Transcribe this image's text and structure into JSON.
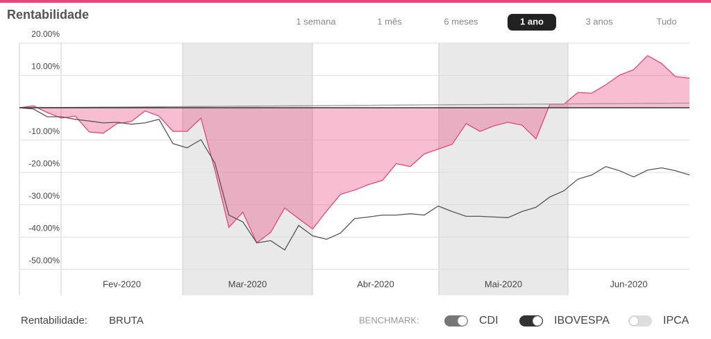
{
  "header": {
    "title": "Rentabilidade",
    "ranges": [
      {
        "label": "1 semana",
        "active": false
      },
      {
        "label": "1 mês",
        "active": false
      },
      {
        "label": "6 meses",
        "active": false
      },
      {
        "label": "1 ano",
        "active": true
      },
      {
        "label": "3 anos",
        "active": false
      },
      {
        "label": "Tudo",
        "active": false
      }
    ]
  },
  "chart_data": {
    "type": "line",
    "x_labels": [
      "Fev-2020",
      "Mar-2020",
      "Abr-2020",
      "Mai-2020",
      "Jun-2020"
    ],
    "ylim": [
      -58,
      20
    ],
    "yticks": [
      {
        "value": 20,
        "label": "20.00%"
      },
      {
        "value": 10,
        "label": "10.00%"
      },
      {
        "value": -10,
        "label": "-10.00%"
      },
      {
        "value": -20,
        "label": "-20.00%"
      },
      {
        "value": -30,
        "label": "-30.00%"
      },
      {
        "value": -40,
        "label": "-40.00%"
      },
      {
        "value": -50,
        "label": "-50.00%"
      }
    ],
    "grid": true,
    "series": [
      {
        "name": "Rentabilidade",
        "color": "#e8457a",
        "area": true,
        "values": [
          0,
          0.6,
          -1.5,
          -3.2,
          -2.6,
          -7.5,
          -7.9,
          -4.9,
          -4.3,
          -1,
          -2.6,
          -7.3,
          -7.3,
          -3.2,
          -19.3,
          -37,
          -32.3,
          -41.8,
          -38.5,
          -31,
          -34.3,
          -37.5,
          -32,
          -26.8,
          -25.5,
          -23.8,
          -22.5,
          -17.3,
          -18.2,
          -14.3,
          -12.8,
          -11.3,
          -4.9,
          -7.3,
          -5.6,
          -4.5,
          -5.4,
          -9.6,
          1.1,
          1.1,
          4.7,
          4.5,
          7.1,
          10.1,
          11.8,
          16.1,
          13.7,
          9.6,
          9.2
        ]
      },
      {
        "name": "IBOVESPA",
        "color": "#555555",
        "area": false,
        "values": [
          0,
          -0.4,
          -2.8,
          -2.8,
          -3.6,
          -4.1,
          -4.7,
          -4.5,
          -5.1,
          -4.7,
          -3.6,
          -11.1,
          -12.4,
          -9.9,
          -17.1,
          -33.2,
          -35.3,
          -41.8,
          -41.1,
          -44,
          -36.4,
          -39.6,
          -40.7,
          -38.8,
          -34.3,
          -33.8,
          -33.2,
          -33.2,
          -32.8,
          -33.2,
          -30.4,
          -32.1,
          -33.6,
          -33.6,
          -33.8,
          -34,
          -32.1,
          -30.8,
          -27.6,
          -25.7,
          -22.1,
          -20.8,
          -18.2,
          -19.5,
          -21.4,
          -19.3,
          -18.6,
          -19.5,
          -20.8
        ]
      },
      {
        "name": "CDI",
        "color": "#999999",
        "area": false,
        "values": [
          0,
          0.03,
          0.06,
          0.09,
          0.12,
          0.15,
          0.18,
          0.21,
          0.24,
          0.27,
          0.3,
          0.33,
          0.36,
          0.39,
          0.42,
          0.45,
          0.48,
          0.51,
          0.54,
          0.57,
          0.6,
          0.63,
          0.66,
          0.69,
          0.72,
          0.75,
          0.78,
          0.81,
          0.84,
          0.87,
          0.9,
          0.93,
          0.96,
          0.99,
          1.02,
          1.05,
          1.08,
          1.11,
          1.14,
          1.17,
          1.2,
          1.23,
          1.26,
          1.29,
          1.32,
          1.35,
          1.38,
          1.41,
          1.44
        ]
      }
    ]
  },
  "footer": {
    "label": "Rentabilidade:",
    "value": "BRUTA",
    "benchmark_label": "BENCHMARK:",
    "benchmarks": [
      {
        "label": "CDI",
        "on": true,
        "color": "#777777"
      },
      {
        "label": "IBOVESPA",
        "on": true,
        "color": "#333333"
      },
      {
        "label": "IPCA",
        "on": false,
        "color": "#dddddd"
      }
    ]
  }
}
